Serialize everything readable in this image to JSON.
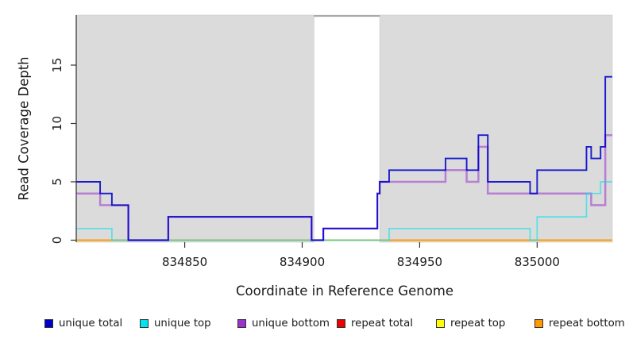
{
  "chart_data": {
    "type": "line",
    "subtype": "step-coverage",
    "title": "",
    "xlabel": "Coordinate in Reference Genome",
    "ylabel": "Read Coverage Depth",
    "x_domain": [
      834804,
      835032
    ],
    "y_domain": [
      0,
      19.3
    ],
    "x_ticks": [
      834850,
      834900,
      834950,
      835000
    ],
    "y_ticks": [
      0,
      5,
      10,
      15
    ],
    "grid": false,
    "plot_background": "#dbdbdb",
    "gap_region": {
      "from": 834905,
      "to": 834933,
      "color": "#ffffff",
      "top_edge_color": "#a9a9a9"
    },
    "shaded_regions": [
      {
        "from": 834804,
        "to": 834905
      },
      {
        "from": 834933,
        "to": 835032
      }
    ],
    "series": [
      {
        "name": "unique total",
        "color": "#0000cc",
        "steps": [
          [
            834804,
            5
          ],
          [
            834814,
            4
          ],
          [
            834819,
            3
          ],
          [
            834826,
            0
          ],
          [
            834843,
            2
          ],
          [
            834904,
            0
          ],
          [
            834909,
            1
          ],
          [
            834932,
            4
          ],
          [
            834933,
            5
          ],
          [
            834937,
            6
          ],
          [
            834961,
            7
          ],
          [
            834970,
            6
          ],
          [
            834975,
            9
          ],
          [
            834979,
            5
          ],
          [
            834997,
            4
          ],
          [
            835000,
            6
          ],
          [
            835021,
            8
          ],
          [
            835023,
            7
          ],
          [
            835027,
            8
          ],
          [
            835029,
            14
          ]
        ]
      },
      {
        "name": "unique top",
        "color": "#00e5ee",
        "steps": [
          [
            834804,
            1
          ],
          [
            834819,
            0
          ],
          [
            834937,
            1
          ],
          [
            834997,
            0
          ],
          [
            835000,
            2
          ],
          [
            835021,
            4
          ],
          [
            835027,
            5
          ]
        ]
      },
      {
        "name": "unique bottom",
        "color": "#9933cc",
        "steps": [
          [
            834804,
            4
          ],
          [
            834814,
            3
          ],
          [
            834826,
            0
          ],
          [
            834843,
            2
          ],
          [
            834904,
            0
          ],
          [
            834909,
            1
          ],
          [
            834932,
            4
          ],
          [
            834933,
            5
          ],
          [
            834961,
            6
          ],
          [
            834970,
            5
          ],
          [
            834975,
            8
          ],
          [
            834979,
            4
          ],
          [
            835023,
            3
          ],
          [
            835029,
            9
          ]
        ]
      },
      {
        "name": "repeat total",
        "color": "#ee0000",
        "steps": [
          [
            834804,
            0
          ]
        ]
      },
      {
        "name": "repeat top",
        "color": "#ffff00",
        "steps": [
          [
            834804,
            0
          ]
        ]
      },
      {
        "name": "repeat bottom",
        "color": "#ff9900",
        "steps": [
          [
            834804,
            0
          ]
        ]
      }
    ],
    "draw_order": [
      "repeat total",
      "repeat top",
      "repeat bottom",
      "unique bottom",
      "unique top",
      "unique total"
    ],
    "legend": {
      "position": "bottom",
      "items": [
        {
          "label": "unique total",
          "color": "#0000cc"
        },
        {
          "label": "unique top",
          "color": "#00e5ee"
        },
        {
          "label": "unique bottom",
          "color": "#9933cc"
        },
        {
          "label": "repeat total",
          "color": "#ee0000"
        },
        {
          "label": "repeat top",
          "color": "#ffff00"
        },
        {
          "label": "repeat bottom",
          "color": "#ff9900"
        }
      ]
    }
  }
}
